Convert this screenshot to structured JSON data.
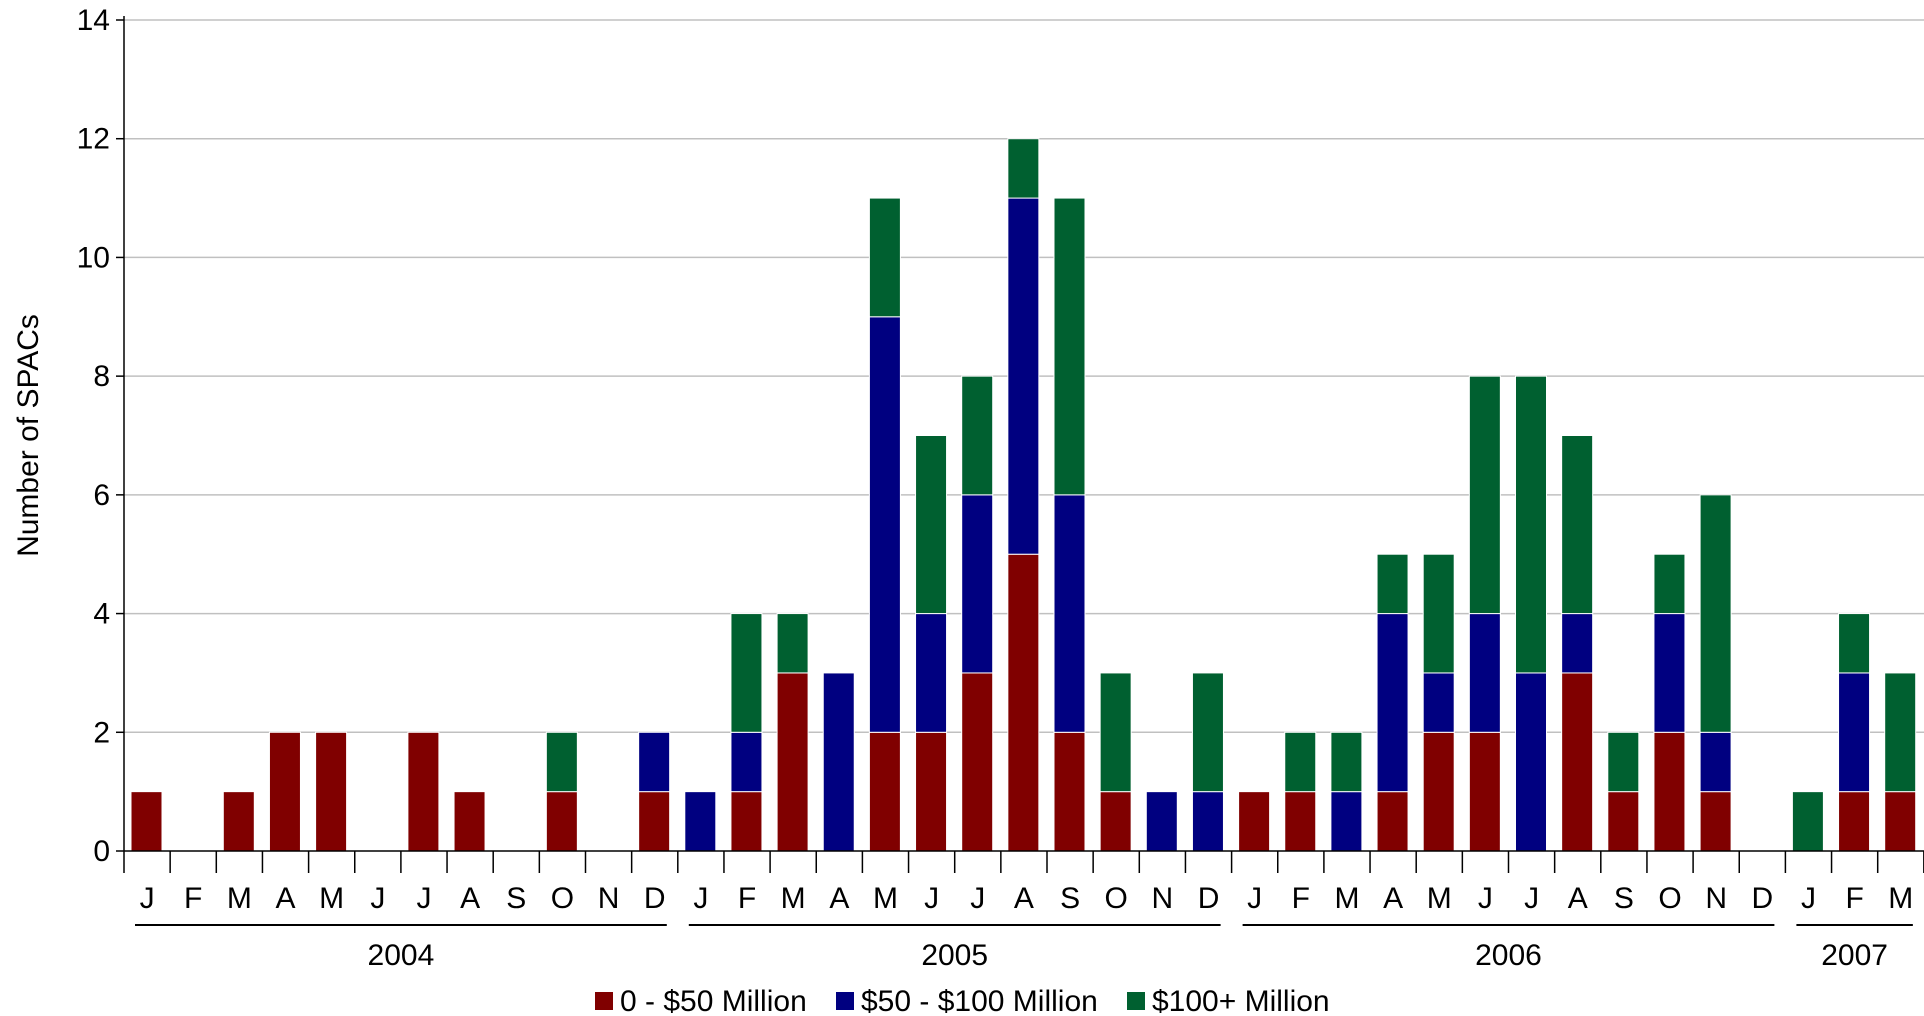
{
  "chart_data": {
    "type": "bar",
    "stacked": true,
    "ylabel": "Number of SPACs",
    "xlabel": "",
    "ylim": [
      0,
      14
    ],
    "yticks": [
      0,
      2,
      4,
      6,
      8,
      10,
      12,
      14
    ],
    "grid": true,
    "legend_position": "bottom",
    "categories": [
      "J",
      "F",
      "M",
      "A",
      "M",
      "J",
      "J",
      "A",
      "S",
      "O",
      "N",
      "D",
      "J",
      "F",
      "M",
      "A",
      "M",
      "J",
      "J",
      "A",
      "S",
      "O",
      "N",
      "D",
      "J",
      "F",
      "M",
      "A",
      "M",
      "J",
      "J",
      "A",
      "S",
      "O",
      "N",
      "D",
      "J",
      "F",
      "M"
    ],
    "years": [
      {
        "label": "2004",
        "start": 0,
        "end": 11
      },
      {
        "label": "2005",
        "start": 12,
        "end": 23
      },
      {
        "label": "2006",
        "start": 24,
        "end": 35
      },
      {
        "label": "2007",
        "start": 36,
        "end": 38
      }
    ],
    "series": [
      {
        "name": "0 - $50 Million",
        "color": "#800000",
        "values": [
          1,
          0,
          1,
          2,
          2,
          0,
          2,
          1,
          0,
          1,
          0,
          1,
          0,
          1,
          3,
          0,
          2,
          2,
          3,
          5,
          2,
          1,
          0,
          0,
          1,
          1,
          0,
          1,
          2,
          2,
          0,
          3,
          1,
          2,
          1,
          0,
          0,
          1,
          1
        ]
      },
      {
        "name": "$50 - $100 Million",
        "color": "#000080",
        "values": [
          0,
          0,
          0,
          0,
          0,
          0,
          0,
          0,
          0,
          0,
          0,
          1,
          1,
          1,
          0,
          3,
          7,
          2,
          3,
          6,
          4,
          0,
          1,
          1,
          0,
          0,
          1,
          3,
          1,
          2,
          3,
          1,
          0,
          2,
          1,
          0,
          0,
          2,
          0
        ]
      },
      {
        "name": "$100+ Million",
        "color": "#006030",
        "values": [
          0,
          0,
          0,
          0,
          0,
          0,
          0,
          0,
          0,
          1,
          0,
          0,
          0,
          2,
          1,
          0,
          2,
          3,
          2,
          1,
          5,
          2,
          0,
          2,
          0,
          1,
          1,
          1,
          2,
          4,
          5,
          3,
          1,
          1,
          4,
          0,
          1,
          1,
          2
        ]
      }
    ]
  }
}
